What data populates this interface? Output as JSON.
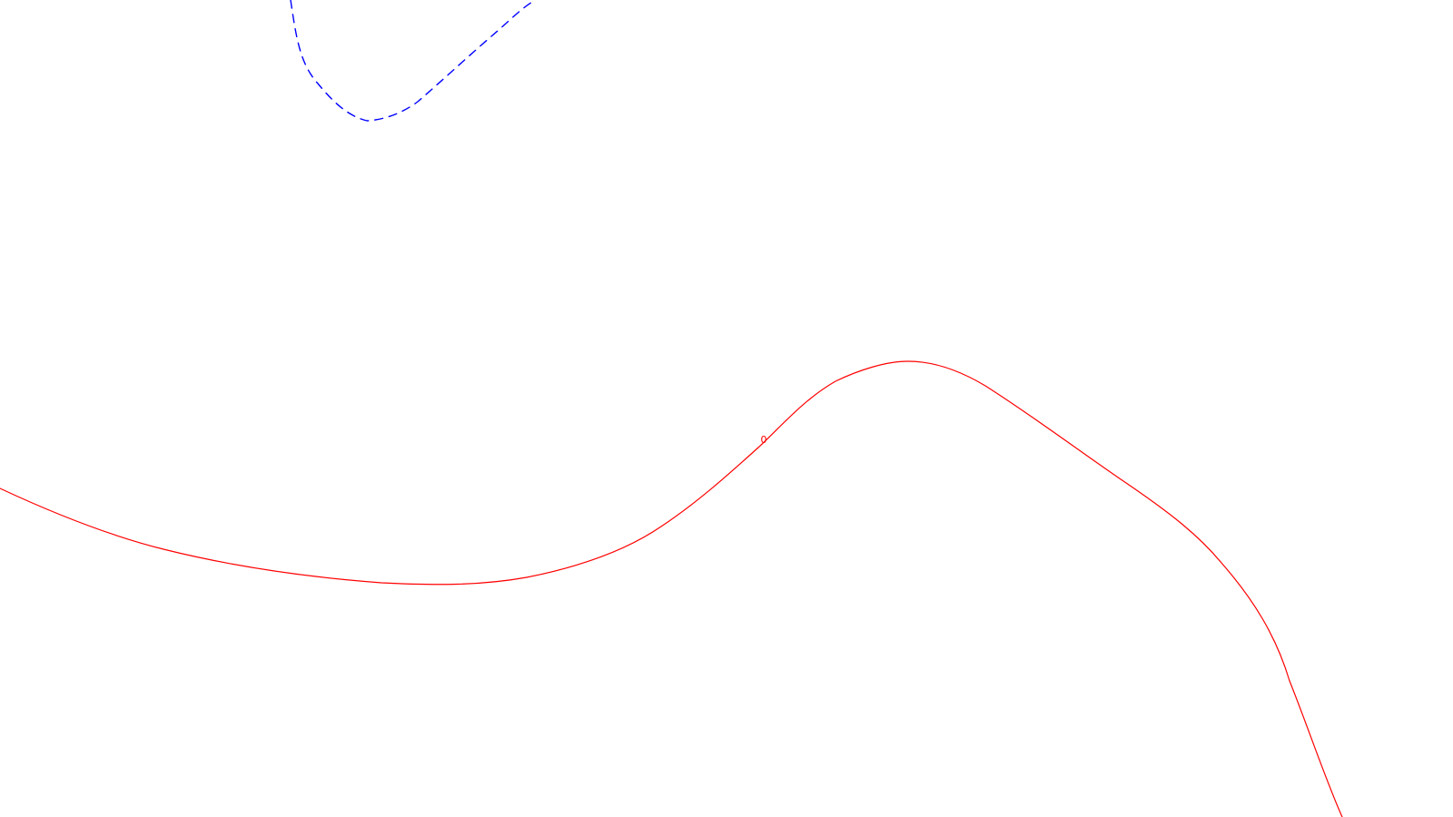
{
  "contours": [
    {
      "id": "solid-contour",
      "style": "solid",
      "color": "#ff0000",
      "label": "0"
    },
    {
      "id": "dashed-contour",
      "style": "dashed",
      "color": "#0000ff",
      "label": ""
    }
  ]
}
